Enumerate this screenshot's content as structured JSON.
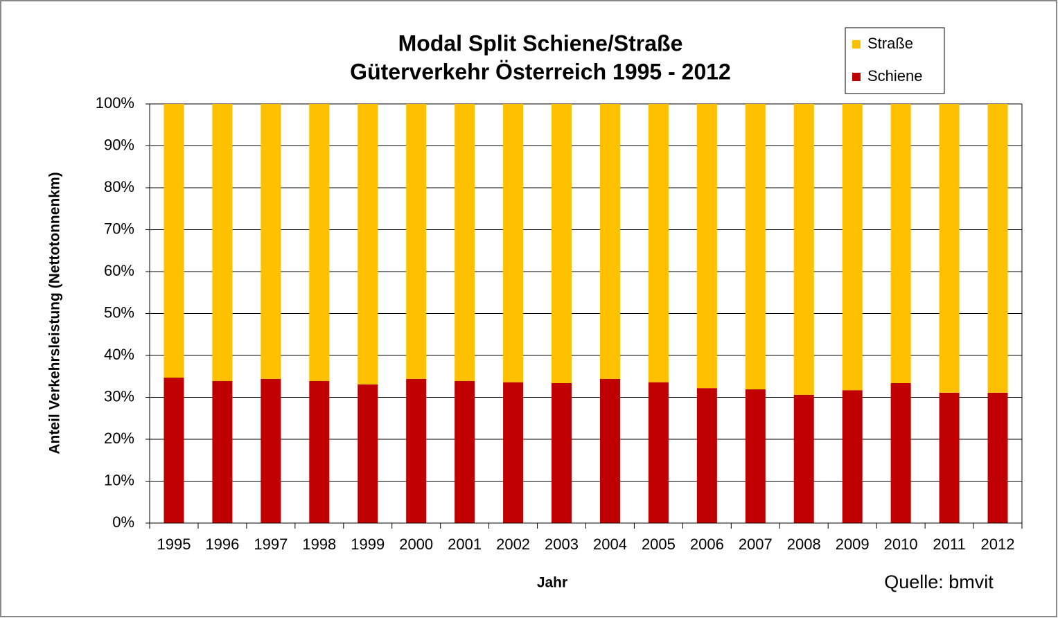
{
  "chart_data": {
    "type": "stacked_bar",
    "title": "Modal Split Schiene/Straße",
    "subtitle": "Güterverkehr Österreich 1995 - 2012",
    "x_label": "Jahr",
    "y_label": "Anteil Verkehrsleistung  (Nettotonnenkm)",
    "source": "Quelle: bmvit",
    "categories": [
      "1995",
      "1996",
      "1997",
      "1998",
      "1999",
      "2000",
      "2001",
      "2002",
      "2003",
      "2004",
      "2005",
      "2006",
      "2007",
      "2008",
      "2009",
      "2010",
      "2011",
      "2012"
    ],
    "series": [
      {
        "name": "Schiene",
        "color": "#c00000",
        "values": [
          34.7,
          33.9,
          34.4,
          33.9,
          33.1,
          34.4,
          33.9,
          33.6,
          33.4,
          34.4,
          33.6,
          32.2,
          31.9,
          30.6,
          31.7,
          33.4,
          31.1,
          31.1
        ]
      },
      {
        "name": "Straße",
        "color": "#ffc000",
        "values": [
          65.3,
          66.1,
          65.6,
          66.1,
          66.9,
          65.6,
          66.1,
          66.4,
          66.6,
          65.6,
          66.4,
          67.8,
          68.1,
          69.4,
          68.3,
          66.6,
          68.9,
          68.9
        ]
      }
    ],
    "ylim": [
      0,
      100
    ],
    "yticks": [
      {
        "value": 0,
        "label": "0%"
      },
      {
        "value": 10,
        "label": "10%"
      },
      {
        "value": 20,
        "label": "20%"
      },
      {
        "value": 30,
        "label": "30%"
      },
      {
        "value": 40,
        "label": "40%"
      },
      {
        "value": 50,
        "label": "50%"
      },
      {
        "value": 60,
        "label": "60%"
      },
      {
        "value": 70,
        "label": "70%"
      },
      {
        "value": 80,
        "label": "80%"
      },
      {
        "value": 90,
        "label": "90%"
      },
      {
        "value": 100,
        "label": "100%"
      }
    ],
    "grid": true,
    "legend": "top-right"
  }
}
